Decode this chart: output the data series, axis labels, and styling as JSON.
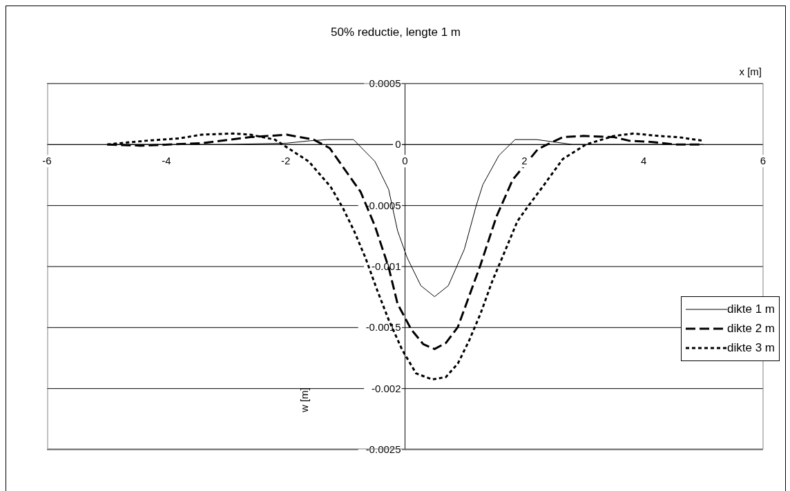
{
  "chart_data": {
    "type": "line",
    "title": "50% reductie, lengte 1 m",
    "xlabel": "x [m]",
    "ylabel": "w [m]",
    "xlim": [
      -6,
      6
    ],
    "xticks": [
      -6,
      -4,
      -2,
      0,
      2,
      4,
      6
    ],
    "ylim": [
      -0.0025,
      0.0005
    ],
    "yticks": [
      -0.0025,
      -0.002,
      -0.0015,
      -0.001,
      -0.0005,
      0,
      0.0005
    ],
    "grid": "y",
    "legend": "right",
    "marker": "none",
    "series": [
      {
        "name": "dikte 1 m",
        "color": "#000000",
        "line_style": "solid",
        "x": [
          -5,
          -4,
          -3,
          -2,
          -1.6,
          -1.3,
          -0.87,
          -0.51,
          -0.28,
          -0.13,
          0.03,
          0.26,
          0.49,
          0.72,
          0.99,
          1.19,
          1.3,
          1.57,
          1.84,
          2.2,
          2.8,
          3.5,
          4.2,
          5
        ],
        "values": [
          0,
          0,
          0,
          1e-05,
          3e-05,
          4e-05,
          4e-05,
          -0.00014,
          -0.00037,
          -0.00071,
          -0.00093,
          -0.00116,
          -0.00125,
          -0.00116,
          -0.00086,
          -0.0005,
          -0.00033,
          -9e-05,
          4e-05,
          4e-05,
          0,
          0,
          0,
          0
        ]
      },
      {
        "name": "dikte 2 m",
        "color": "#000000",
        "line_style": "dashed",
        "x": [
          -5,
          -4.44,
          -3.42,
          -2.6,
          -1.99,
          -1.54,
          -1.27,
          -0.75,
          -0.51,
          -0.28,
          -0.13,
          0.1,
          0.3,
          0.49,
          0.68,
          0.88,
          1.26,
          1.53,
          1.8,
          2.22,
          2.34,
          2.64,
          2.99,
          3.5,
          3.76,
          4.15,
          4.5,
          5
        ],
        "values": [
          0,
          -1e-05,
          1e-05,
          6e-05,
          8e-05,
          4e-05,
          -3e-05,
          -0.00039,
          -0.00067,
          -0.00101,
          -0.00131,
          -0.00152,
          -0.00164,
          -0.00168,
          -0.00163,
          -0.0015,
          -0.00099,
          -0.00059,
          -0.00029,
          -4e-05,
          -1e-05,
          6e-05,
          7e-05,
          6e-05,
          3e-05,
          2e-05,
          0,
          0
        ]
      },
      {
        "name": "dikte 3 m",
        "color": "#000000",
        "line_style": "dotted",
        "x": [
          -5,
          -4.36,
          -3.79,
          -3.42,
          -2.89,
          -2.6,
          -2.19,
          -2.03,
          -1.62,
          -1.25,
          -1.05,
          -0.86,
          -0.67,
          -0.47,
          -0.28,
          -0.05,
          0.18,
          0.45,
          0.68,
          0.88,
          1.07,
          1.26,
          1.46,
          1.65,
          1.88,
          2.07,
          2.3,
          2.64,
          3.03,
          3.5,
          3.83,
          4.24,
          4.58,
          5
        ],
        "values": [
          0,
          3e-05,
          5e-05,
          8e-05,
          9e-05,
          8e-05,
          4e-05,
          -1e-05,
          -0.00014,
          -0.00035,
          -0.00052,
          -0.00071,
          -0.00093,
          -0.0012,
          -0.00144,
          -0.00169,
          -0.00188,
          -0.00193,
          -0.00191,
          -0.0018,
          -0.00161,
          -0.00139,
          -0.00112,
          -0.0009,
          -0.00063,
          -0.0005,
          -0.00035,
          -0.00012,
          0,
          7e-05,
          9e-05,
          7e-05,
          6e-05,
          3e-05
        ]
      }
    ]
  }
}
